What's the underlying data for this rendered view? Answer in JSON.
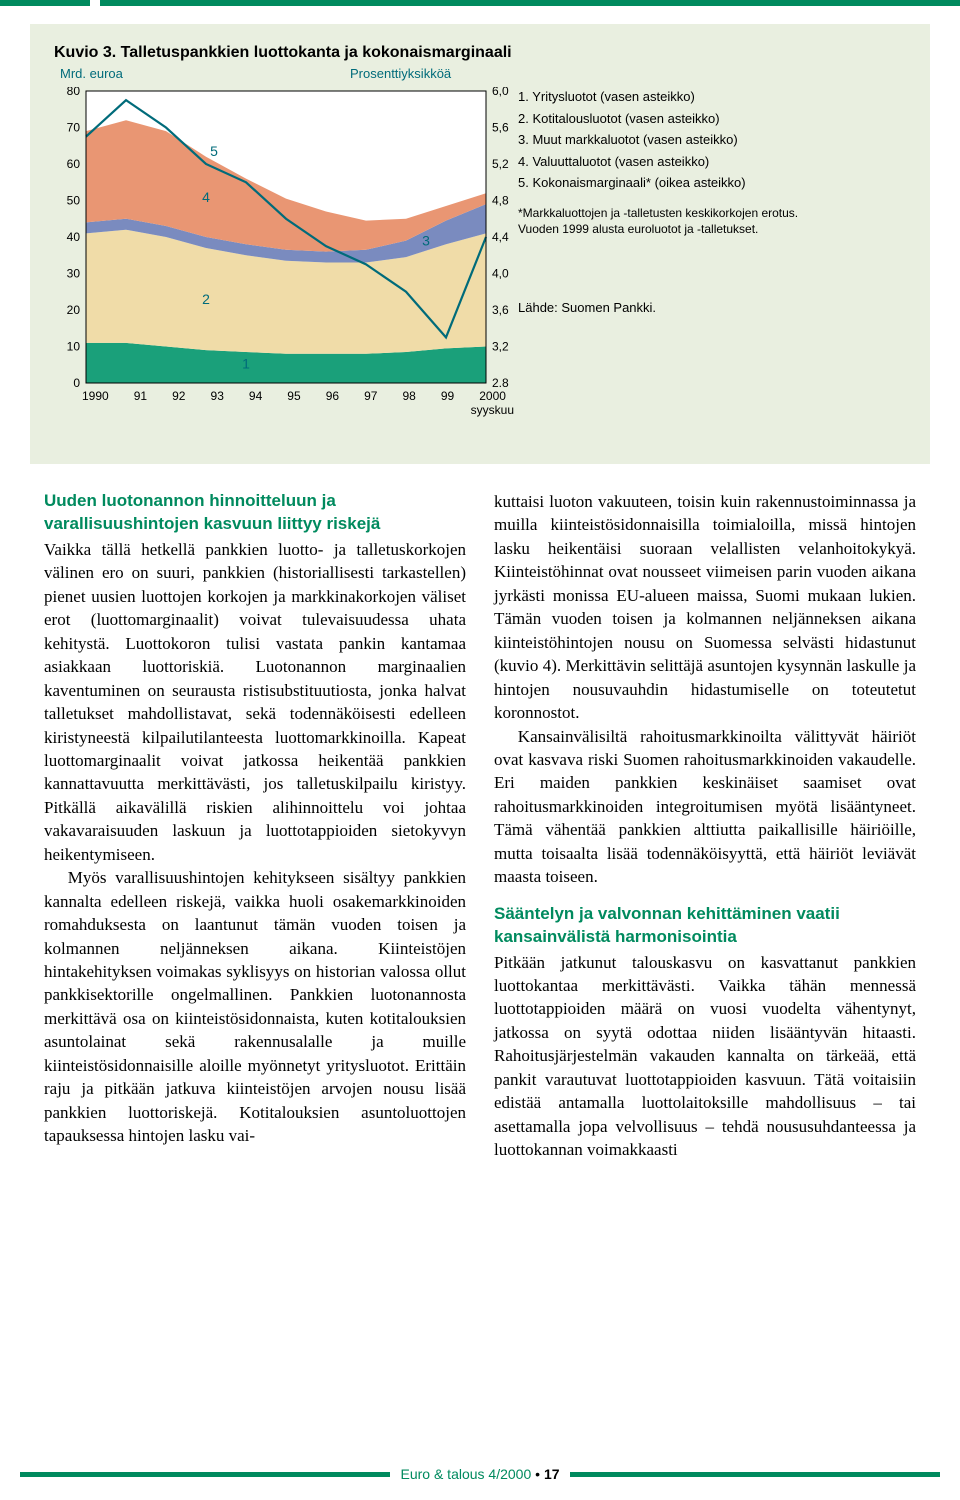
{
  "top_bar_color": "#008a5e",
  "chart": {
    "type": "stacked-area-with-line",
    "panel_bg": "#e9efe0",
    "title": "Kuvio 3. Talletuspankkien luottokanta ja kokonaismarginaali",
    "title_fontsize": 16,
    "title_color": "#000000",
    "left_axis_label": "Mrd. euroa",
    "right_axis_label": "Prosenttiyksikköä",
    "axis_label_color": "#006b7a",
    "plot_bg": "#ffffff",
    "border_color": "#000000",
    "x_categories": [
      "1990",
      "91",
      "92",
      "93",
      "94",
      "95",
      "96",
      "97",
      "98",
      "99",
      "2000"
    ],
    "x_sublabel": "syyskuu",
    "left_y": {
      "min": 0,
      "max": 80,
      "step": 10
    },
    "right_y": {
      "min": 2.8,
      "max": 6.0,
      "step": 0.4,
      "ticks": [
        "6,0",
        "5,6",
        "5,2",
        "4,8",
        "4,4",
        "4,0",
        "3,6",
        "3,2",
        "2,8"
      ]
    },
    "series": [
      {
        "id": 1,
        "name": "Yritysluotot",
        "color": "#1aa07a",
        "values": [
          11,
          11,
          10,
          9,
          8.5,
          8,
          8,
          8,
          8.5,
          9.5,
          10
        ]
      },
      {
        "id": 2,
        "name": "Kotitalousluotot",
        "color": "#f0dca8",
        "values": [
          30,
          31,
          30,
          28,
          26.5,
          25.5,
          25,
          25,
          26,
          28.5,
          31
        ]
      },
      {
        "id": 3,
        "name": "Muut markkaluotot",
        "color": "#7a8bbf",
        "values": [
          3,
          3,
          3,
          3,
          3,
          3,
          3,
          3.5,
          4.5,
          6.5,
          8
        ]
      },
      {
        "id": 4,
        "name": "Valuuttaluotot",
        "color": "#e99673",
        "values": [
          25,
          27,
          26,
          22,
          18,
          14,
          11,
          8,
          6,
          4,
          3
        ]
      }
    ],
    "line_series": {
      "id": 5,
      "name": "Kokonaismarginaali",
      "color": "#006b7a",
      "width": 2.2,
      "values_right": [
        5.5,
        5.9,
        5.6,
        5.2,
        5.0,
        4.6,
        4.3,
        4.1,
        3.8,
        3.3,
        4.4
      ]
    },
    "series_label_color": "#006b7a",
    "legend": {
      "color": "#000000",
      "items": [
        "1. Yritysluotot (vasen asteikko)",
        "2. Kotitalousluotot (vasen asteikko)",
        "3. Muut markkaluotot (vasen asteikko)",
        "4. Valuuttaluotot (vasen asteikko)",
        "5. Kokonaismarginaali* (oikea asteikko)"
      ],
      "note1": "*Markkaluottojen ja -talletusten keskikorkojen erotus.",
      "note2": "Vuoden 1999 alusta euroluotot ja -talletukset.",
      "source": "Lähde: Suomen Pankki."
    }
  },
  "text": {
    "heading_color": "#008a5e",
    "h1": "Uuden luotonannon hinnoitteluun ja varallisuushintojen kasvuun liittyy riskejä",
    "p1": "Vaikka tällä hetkellä pankkien luotto- ja talletuskorkojen välinen ero on suuri, pankkien (historiallisesti tarkastellen) pienet uusien luottojen korkojen ja markkinakorkojen väliset erot (luottomarginaalit) voivat tulevaisuudessa uhata kehitystä. Luottokoron tulisi vastata pankin kantamaa asiakkaan luottoriskiä. Luotonannon marginaalien kaventuminen on seurausta ristisubstituutiosta, jonka halvat talletukset mahdollistavat, sekä todennäköisesti edelleen kiristyneestä kilpailutilanteesta luottomarkkinoilla. Kapeat luottomarginaalit voivat jatkossa heikentää pankkien kannattavuutta merkittävästi, jos talletuskilpailu kiristyy. Pitkällä aikavälillä riskien alihinnoittelu voi johtaa vakavaraisuuden laskuun ja luottotappioiden sietokyvyn heikentymiseen.",
    "p2": "Myös varallisuushintojen kehitykseen sisältyy pankkien kannalta edelleen riskejä, vaikka huoli osakemarkkinoiden romahduksesta on laantunut tämän vuoden toisen ja kolmannen neljänneksen aikana. Kiinteistöjen hintakehityksen voimakas syklisyys on historian valossa ollut pankkisektorille ongelmallinen. Pankkien luotonannosta merkittävä osa on kiinteistösidonnaista, kuten kotitalouksien asuntolainat sekä rakennusalalle ja muille kiinteistösidonnaisille aloille myönnetyt yritysluotot. Erittäin raju ja pitkään jatkuva kiinteistöjen arvojen nousu lisää pankkien luottoriskejä. Kotitalouksien asuntoluottojen tapauksessa hintojen lasku vai-",
    "p3": "kuttaisi luoton vakuuteen, toisin kuin rakennustoiminnassa ja muilla kiinteistösidonnaisilla toimialoilla, missä hintojen lasku heikentäisi suoraan velallisten velanhoitokykyä. Kiinteistöhinnat ovat nousseet viimeisen parin vuoden aikana jyrkästi monissa EU-alueen maissa, Suomi mukaan lukien. Tämän vuoden toisen ja kolmannen neljänneksen aikana kiinteistöhintojen nousu on Suomessa selvästi hidastunut (kuvio 4). Merkittävin selittäjä asuntojen kysynnän laskulle ja hintojen nousuvauhdin hidastumiselle on toteutetut koronnostot.",
    "p4": "Kansainvälisiltä rahoitusmarkkinoilta välittyvät häiriöt ovat kasvava riski Suomen rahoitusmarkkinoiden vakaudelle. Eri maiden pankkien keskinäiset saamiset ovat rahoitusmarkkinoiden integroitumisen myötä lisääntyneet. Tämä vähentää pankkien alttiutta paikallisille häiriöille, mutta toisaalta lisää todennäköisyyttä, että häiriöt leviävät maasta toiseen.",
    "h2": "Sääntelyn ja valvonnan kehittäminen vaatii kansainvälistä harmonisointia",
    "p5": "Pitkään jatkunut talouskasvu on kasvattanut pankkien luottokantaa merkittävästi. Vaikka tähän mennessä luottotappioiden määrä on vuosi vuodelta vähentynyt, jatkossa on syytä odottaa niiden lisääntyvän hitaasti. Rahoitusjärjestelmän vakauden kannalta on tärkeää, että pankit varautuvat luottotappioiden kasvuun. Tätä voitaisiin edistää antamalla luottolaitoksille mahdollisuus – tai asettamalla jopa velvollisuus – tehdä noususuhdanteessa ja luottokannan voimakkaasti"
  },
  "footer": {
    "bar_color": "#008a5e",
    "text_color": "#008a5e",
    "label": "Euro & talous 4/2000",
    "page": "17"
  }
}
